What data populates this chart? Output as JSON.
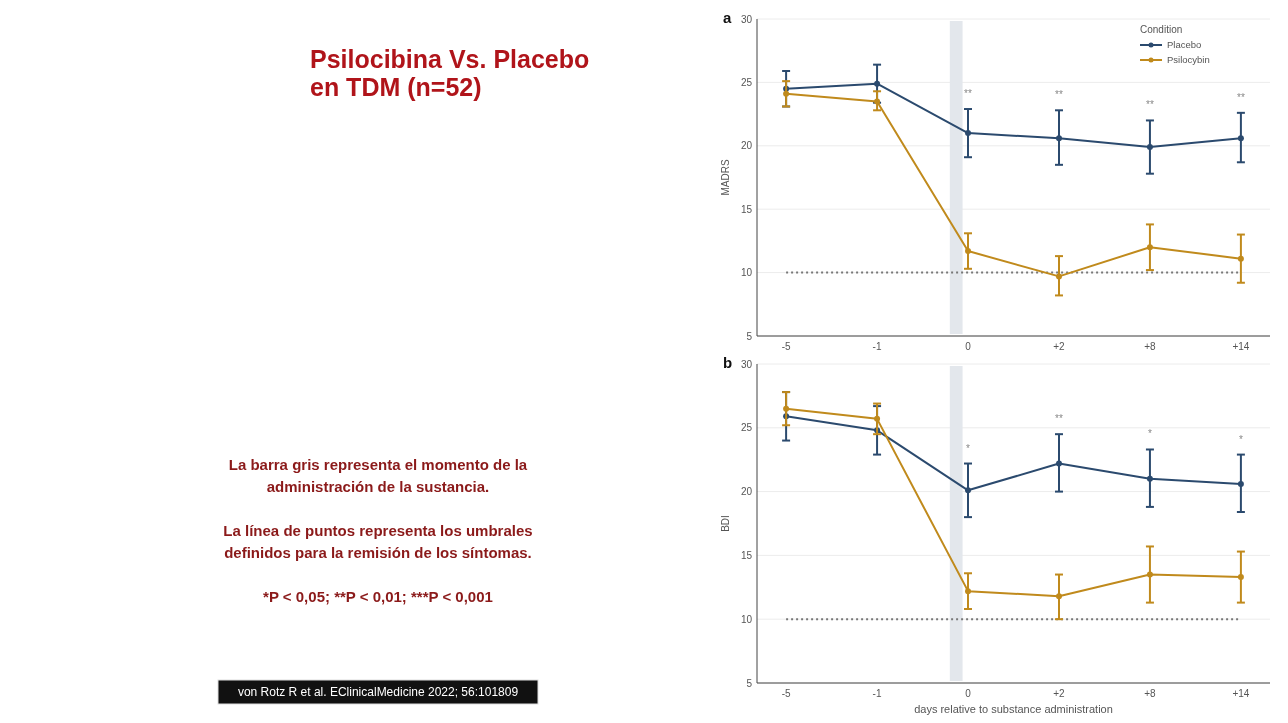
{
  "chart_data": [
    {
      "type": "other",
      "title": "Psilocibina Vs. Placebo en TDM (n=52)",
      "annotations": [
        "La barra gris representa el momento de la administración de la sustancia.",
        "La línea de puntos representa los umbrales definidos para la remisión de los síntomas.",
        "*P < 0,05; **P < 0,01; ***P < 0,001",
        "von Rotz R et al. EClinicalMedicine 2022; 56:101809"
      ]
    },
    {
      "type": "line",
      "ylabel": "MADRS",
      "categories": [
        "-5",
        "-1",
        "0",
        "+2",
        "+8",
        "+14"
      ],
      "series": [
        {
          "name": "Placebo",
          "color": "#2b4a6e",
          "values": [
            24.5,
            24.9,
            21.0,
            20.6,
            19.9,
            20.6
          ],
          "errors": [
            [
              23.1,
              25.9
            ],
            [
              23.4,
              26.4
            ],
            [
              19.1,
              22.9
            ],
            [
              18.5,
              22.8
            ],
            [
              17.8,
              22.0
            ],
            [
              18.7,
              22.6
            ]
          ]
        },
        {
          "name": "Psilocybin",
          "color": "#c08a1c",
          "values": [
            24.1,
            23.5,
            11.7,
            9.7,
            12.0,
            11.1
          ],
          "errors": [
            [
              23.1,
              25.1
            ],
            [
              22.8,
              24.3
            ],
            [
              10.3,
              13.1
            ],
            [
              8.2,
              11.3
            ],
            [
              10.2,
              13.8
            ],
            [
              9.2,
              13.0
            ]
          ]
        }
      ],
      "ylim": [
        5,
        30
      ],
      "yticks": [
        5,
        10,
        15,
        20,
        25,
        30
      ],
      "grid": "y",
      "legend": "top right",
      "legend_title": "Condition",
      "marker": "circle",
      "line_style": "solid",
      "ref_lines": [
        {
          "axis": "y",
          "value": 10,
          "label": null,
          "line_style": "dotted",
          "color": "#777777"
        }
      ],
      "bands": [
        {
          "axis": "x",
          "from": "0",
          "to": "0",
          "label": null,
          "color": "#e3e7ec"
        }
      ],
      "annotations": [
        "a",
        {
          "text": "**",
          "x": "0",
          "y": 22.9
        },
        {
          "text": "**",
          "x": "+2",
          "y": 22.8
        },
        {
          "text": "**",
          "x": "+8",
          "y": 22.0
        },
        {
          "text": "**",
          "x": "+14",
          "y": 22.6
        }
      ]
    },
    {
      "type": "line",
      "ylabel": "BDI",
      "xlabel": "days relative to substance administration",
      "categories": [
        "-5",
        "-1",
        "0",
        "+2",
        "+8",
        "+14"
      ],
      "series": [
        {
          "color": "#2b4a6e",
          "values": [
            25.9,
            24.8,
            20.1,
            22.2,
            21.0,
            20.6
          ],
          "errors": [
            [
              24.0,
              27.8
            ],
            [
              22.9,
              26.7
            ],
            [
              18.0,
              22.2
            ],
            [
              20.0,
              24.5
            ],
            [
              18.8,
              23.3
            ],
            [
              18.4,
              22.9
            ]
          ]
        },
        {
          "color": "#c08a1c",
          "values": [
            26.5,
            25.7,
            12.2,
            11.8,
            13.5,
            13.3
          ],
          "errors": [
            [
              25.2,
              27.8
            ],
            [
              24.5,
              26.9
            ],
            [
              10.8,
              13.6
            ],
            [
              10.0,
              13.5
            ],
            [
              11.3,
              15.7
            ],
            [
              11.3,
              15.3
            ]
          ]
        }
      ],
      "ylim": [
        5,
        30
      ],
      "yticks": [
        5,
        10,
        15,
        20,
        25,
        30
      ],
      "grid": "y",
      "marker": "circle",
      "line_style": "solid",
      "ref_lines": [
        {
          "axis": "y",
          "value": 10,
          "label": null,
          "line_style": "dotted",
          "color": "#777777"
        }
      ],
      "bands": [
        {
          "axis": "x",
          "from": "0",
          "to": "0",
          "label": null,
          "color": "#e3e7ec"
        }
      ],
      "annotations": [
        "b",
        {
          "text": "*",
          "x": "0",
          "y": 22.2
        },
        {
          "text": "**",
          "x": "+2",
          "y": 24.5
        },
        {
          "text": "*",
          "x": "+8",
          "y": 23.3
        },
        {
          "text": "*",
          "x": "+14",
          "y": 22.9
        }
      ]
    }
  ]
}
